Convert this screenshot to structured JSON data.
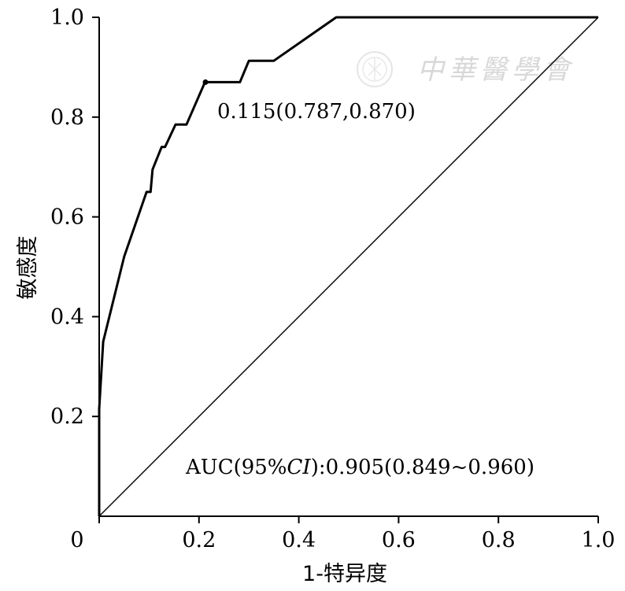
{
  "chart_data": {
    "type": "line",
    "title": "",
    "xlabel": "1-特异度",
    "ylabel": "敏感度",
    "xlim": [
      0,
      1
    ],
    "ylim": [
      0,
      1
    ],
    "x_ticks": [
      {
        "value": 0,
        "label": "0"
      },
      {
        "value": 0.2,
        "label": "0.2"
      },
      {
        "value": 0.4,
        "label": "0.4"
      },
      {
        "value": 0.6,
        "label": "0.6"
      },
      {
        "value": 0.8,
        "label": "0.8"
      },
      {
        "value": 1.0,
        "label": "1.0"
      }
    ],
    "y_ticks": [
      {
        "value": 0.2,
        "label": "0.2"
      },
      {
        "value": 0.4,
        "label": "0.4"
      },
      {
        "value": 0.6,
        "label": "0.6"
      },
      {
        "value": 0.8,
        "label": "0.8"
      },
      {
        "value": 1.0,
        "label": "1.0"
      }
    ],
    "grid": false,
    "series": [
      {
        "x": [
          0,
          0,
          0.005,
          0.008,
          0.008,
          0.05,
          0.095,
          0.1,
          0.103,
          0.107,
          0.125,
          0.132,
          0.153,
          0.163,
          0.175,
          0.212,
          0.282,
          0.3,
          0.35,
          0.475,
          1.0
        ],
        "y": [
          0,
          0.215,
          0.3,
          0.35,
          0.35,
          0.52,
          0.65,
          0.65,
          0.65,
          0.695,
          0.74,
          0.74,
          0.785,
          0.785,
          0.785,
          0.87,
          0.87,
          0.913,
          0.913,
          1.0,
          1.0
        ]
      },
      {
        "x": [
          0,
          1
        ],
        "y": [
          0,
          1
        ]
      }
    ],
    "highlight_point": {
      "x": 0.213,
      "y": 0.87
    },
    "annotations": {
      "cutoff": "0.115(0.787,0.870)",
      "auc_prefix": "AUC(95%",
      "auc_ci": "CI",
      "auc_suffix": "):0.905(0.849~0.960)"
    }
  },
  "watermark": {
    "text": "中華醫學會"
  }
}
